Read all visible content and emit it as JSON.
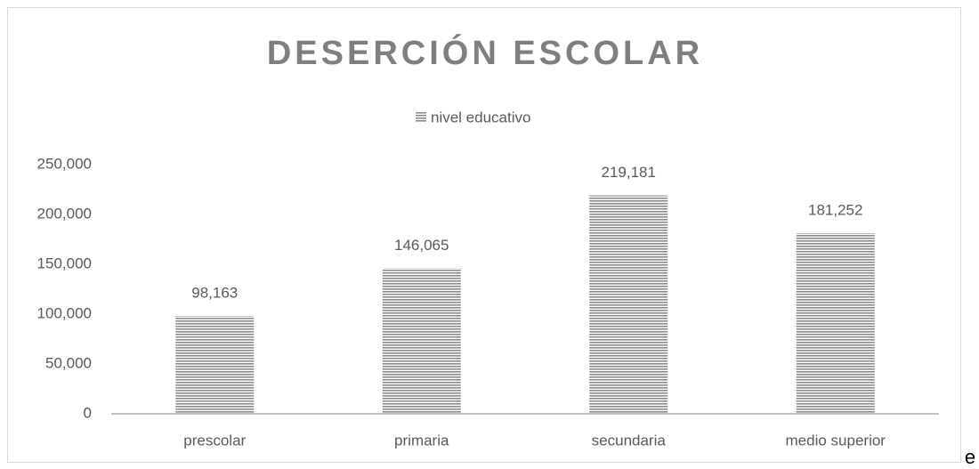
{
  "chart_data": {
    "type": "bar",
    "title": "DESERCIÓN ESCOLAR",
    "categories": [
      "prescolar",
      "primaria",
      "secundaria",
      "medio superior"
    ],
    "series": [
      {
        "name": "nivel educativo",
        "color": "#8c8c8c",
        "values": [
          98163,
          146065,
          219181,
          181252
        ],
        "value_labels": [
          "98,163",
          "146,065",
          "219,181",
          "181,252"
        ]
      }
    ],
    "ylim": [
      0,
      250000
    ],
    "yticks": [
      0,
      {
        "value": 50000,
        "label": "50,000"
      },
      {
        "value": 100000,
        "label": "100,000"
      },
      {
        "value": 150000,
        "label": "150,000"
      },
      {
        "value": 200000,
        "label": "200,000"
      },
      {
        "value": 250000,
        "label": "250,000"
      }
    ],
    "grid": false,
    "legend": "top"
  },
  "trailing_text": "e"
}
